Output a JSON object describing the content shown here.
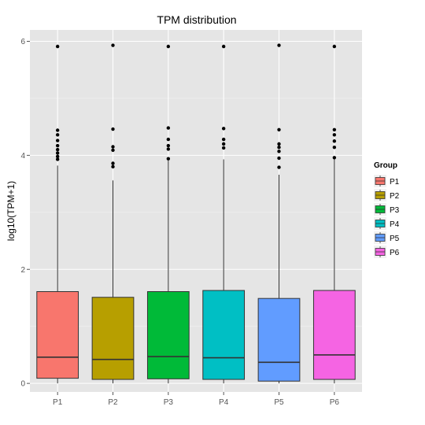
{
  "chart_data": {
    "type": "box",
    "title": "TPM distribution",
    "xlabel": "",
    "ylabel": "log10(TPM+1)",
    "ylim": [
      -0.15,
      6.2
    ],
    "yticks": [
      0,
      2,
      4,
      6
    ],
    "grid": true,
    "legend": {
      "title": "Group",
      "placement": "right"
    },
    "categories": [
      "P1",
      "P2",
      "P3",
      "P4",
      "P5",
      "P6"
    ],
    "colors": [
      "#F8766D",
      "#B79F00",
      "#00BA38",
      "#00BFC4",
      "#619CFF",
      "#F564E3"
    ],
    "boxes": [
      {
        "name": "P1",
        "min": 0,
        "q1": 0.09,
        "median": 0.46,
        "q3": 1.61,
        "max": 3.82,
        "outliers": [
          3.93,
          3.98,
          4.04,
          4.1,
          4.17,
          4.26,
          4.36,
          4.44,
          5.91
        ]
      },
      {
        "name": "P2",
        "min": 0,
        "q1": 0.07,
        "median": 0.42,
        "q3": 1.51,
        "max": 3.56,
        "outliers": [
          3.8,
          3.86,
          4.09,
          4.15,
          4.46,
          5.93
        ]
      },
      {
        "name": "P3",
        "min": 0,
        "q1": 0.08,
        "median": 0.47,
        "q3": 1.61,
        "max": 3.91,
        "outliers": [
          3.94,
          4.11,
          4.17,
          4.28,
          4.48,
          5.91
        ]
      },
      {
        "name": "P4",
        "min": 0,
        "q1": 0.07,
        "median": 0.45,
        "q3": 1.63,
        "max": 3.93,
        "outliers": [
          4.13,
          4.2,
          4.28,
          4.47,
          5.91
        ]
      },
      {
        "name": "P5",
        "min": 0,
        "q1": 0.04,
        "median": 0.37,
        "q3": 1.49,
        "max": 3.66,
        "outliers": [
          3.79,
          3.95,
          4.07,
          4.14,
          4.2,
          4.45,
          5.93
        ]
      },
      {
        "name": "P6",
        "min": 0,
        "q1": 0.07,
        "median": 0.5,
        "q3": 1.63,
        "max": 3.94,
        "outliers": [
          3.96,
          4.14,
          4.25,
          4.36,
          4.45,
          5.91
        ]
      }
    ]
  }
}
